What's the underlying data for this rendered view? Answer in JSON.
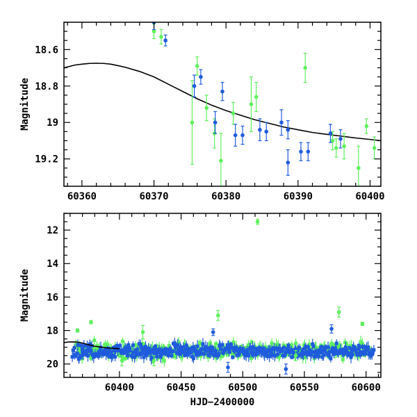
{
  "colors": {
    "green": "#5ef15e",
    "blue": "#1f5bdc",
    "model": "#000000"
  },
  "chart_data": [
    {
      "type": "scatter",
      "title": "",
      "xlabel": "",
      "ylabel": "Magnitude",
      "xlim": [
        60357.5,
        60401.5
      ],
      "ylim": [
        19.35,
        18.45
      ],
      "inverted_y": true,
      "xticks": [
        60360,
        60370,
        60380,
        60390,
        60400
      ],
      "xticklabels": [
        "60360",
        "60370",
        "60380",
        "60390",
        "60400"
      ],
      "yticks": [
        18.6,
        18.8,
        19,
        19.2
      ],
      "yticklabels": [
        "18.6",
        "18.8",
        "19",
        "19.2"
      ],
      "model_curve": {
        "x": [
          60357.5,
          60359,
          60360,
          60361,
          60362,
          60363,
          60364,
          60365,
          60366,
          60368,
          60370,
          60372,
          60374,
          60376,
          60378,
          60380,
          60382,
          60384,
          60386,
          60388,
          60390,
          60392,
          60394,
          60396,
          60398,
          60400,
          60401.5
        ],
        "y": [
          18.7,
          18.685,
          18.68,
          18.676,
          18.675,
          18.676,
          18.68,
          18.688,
          18.697,
          18.72,
          18.75,
          18.79,
          18.83,
          18.87,
          18.905,
          18.935,
          18.96,
          18.985,
          19.005,
          19.025,
          19.04,
          19.055,
          19.065,
          19.075,
          19.085,
          19.093,
          19.1
        ]
      },
      "series": [
        {
          "color": "green",
          "points": [
            {
              "x": 60370.0,
              "y": 18.5,
              "err": 0.04
            },
            {
              "x": 60371.0,
              "y": 18.53,
              "err": 0.04
            },
            {
              "x": 60375.3,
              "y": 19.0,
              "err": 0.23
            },
            {
              "x": 60376.0,
              "y": 18.69,
              "err": 0.05
            },
            {
              "x": 60377.3,
              "y": 18.92,
              "err": 0.07
            },
            {
              "x": 60378.4,
              "y": 19.06,
              "err": 0.08
            },
            {
              "x": 60379.3,
              "y": 19.21,
              "err": 0.15
            },
            {
              "x": 60381.0,
              "y": 18.95,
              "err": 0.06
            },
            {
              "x": 60383.5,
              "y": 18.9,
              "err": 0.15
            },
            {
              "x": 60384.2,
              "y": 18.86,
              "err": 0.08
            },
            {
              "x": 60391.0,
              "y": 18.7,
              "err": 0.08
            },
            {
              "x": 60394.8,
              "y": 19.1,
              "err": 0.05
            },
            {
              "x": 60395.3,
              "y": 19.14,
              "err": 0.05
            },
            {
              "x": 60396.4,
              "y": 19.13,
              "err": 0.07
            },
            {
              "x": 60398.4,
              "y": 19.25,
              "err": 0.12
            },
            {
              "x": 60399.5,
              "y": 19.02,
              "err": 0.04
            },
            {
              "x": 60400.6,
              "y": 19.14,
              "err": 0.06
            }
          ]
        },
        {
          "color": "blue",
          "points": [
            {
              "x": 60370.0,
              "y": 18.45,
              "err": 0.04
            },
            {
              "x": 60371.6,
              "y": 18.55,
              "err": 0.03
            },
            {
              "x": 60375.6,
              "y": 18.8,
              "err": 0.06
            },
            {
              "x": 60376.5,
              "y": 18.75,
              "err": 0.04
            },
            {
              "x": 60378.5,
              "y": 19.0,
              "err": 0.06
            },
            {
              "x": 60379.5,
              "y": 18.83,
              "err": 0.05
            },
            {
              "x": 60381.3,
              "y": 19.07,
              "err": 0.06
            },
            {
              "x": 60382.3,
              "y": 19.07,
              "err": 0.05
            },
            {
              "x": 60384.7,
              "y": 19.04,
              "err": 0.06
            },
            {
              "x": 60385.6,
              "y": 19.05,
              "err": 0.05
            },
            {
              "x": 60387.7,
              "y": 19.0,
              "err": 0.07
            },
            {
              "x": 60388.6,
              "y": 19.04,
              "err": 0.05
            },
            {
              "x": 60388.6,
              "y": 19.22,
              "err": 0.07
            },
            {
              "x": 60390.4,
              "y": 19.16,
              "err": 0.05
            },
            {
              "x": 60391.4,
              "y": 19.16,
              "err": 0.05
            },
            {
              "x": 60394.5,
              "y": 19.06,
              "err": 0.05
            },
            {
              "x": 60395.9,
              "y": 19.09,
              "err": 0.05
            }
          ]
        }
      ]
    },
    {
      "type": "scatter",
      "title": "",
      "xlabel": "HJD−2400000",
      "ylabel": "Magnitude",
      "xlim": [
        60355,
        60612
      ],
      "ylim": [
        20.8,
        11.0
      ],
      "inverted_y": true,
      "xticks": [
        60400,
        60450,
        60500,
        60550,
        60600
      ],
      "xticklabels": [
        "60400",
        "60450",
        "60500",
        "60550",
        "60600"
      ],
      "yticks": [
        12,
        14,
        16,
        18,
        20
      ],
      "yticklabels": [
        "12",
        "14",
        "16",
        "18",
        "20"
      ],
      "model_curve": {
        "x": [
          60355,
          60358,
          60362,
          60366,
          60370,
          60375,
          60380,
          60390,
          60400
        ],
        "y": [
          18.72,
          18.69,
          18.68,
          18.69,
          18.75,
          18.85,
          18.94,
          19.04,
          19.09
        ]
      },
      "series": [
        {
          "color": "green",
          "points": [
            {
              "x": 60512,
              "y": 11.5,
              "err": 0.15
            },
            {
              "x": 60366,
              "y": 18.0,
              "err": 0.1
            },
            {
              "x": 60377,
              "y": 17.5,
              "err": 0.1
            },
            {
              "x": 60419,
              "y": 18.1,
              "err": 0.4
            },
            {
              "x": 60480,
              "y": 17.1,
              "err": 0.3
            },
            {
              "x": 60578,
              "y": 16.9,
              "err": 0.3
            },
            {
              "x": 60597,
              "y": 17.6,
              "err": 0.1
            },
            {
              "x": 60402,
              "y": 19.8,
              "err": 0.3
            },
            {
              "x": 60428,
              "y": 19.8,
              "err": 0.3
            },
            {
              "x": 60543,
              "y": 19.5,
              "err": 0.3
            }
          ],
          "dense_fill": {
            "x_start": 60365,
            "x_end": 60605,
            "y_mean": 19.2,
            "y_scatter": 0.35,
            "seed": 11
          }
        },
        {
          "color": "blue",
          "points": [
            {
              "x": 60370,
              "y": 19.5,
              "err": 0.2
            },
            {
              "x": 60476,
              "y": 18.1,
              "err": 0.2
            },
            {
              "x": 60572,
              "y": 17.9,
              "err": 0.25
            },
            {
              "x": 60535,
              "y": 20.3,
              "err": 0.3
            },
            {
              "x": 60488,
              "y": 20.2,
              "err": 0.3
            }
          ],
          "dense_fill": {
            "x_start": 60362,
            "x_end": 60607,
            "y_mean": 19.25,
            "y_scatter": 0.3,
            "seed": 29
          }
        }
      ]
    }
  ]
}
